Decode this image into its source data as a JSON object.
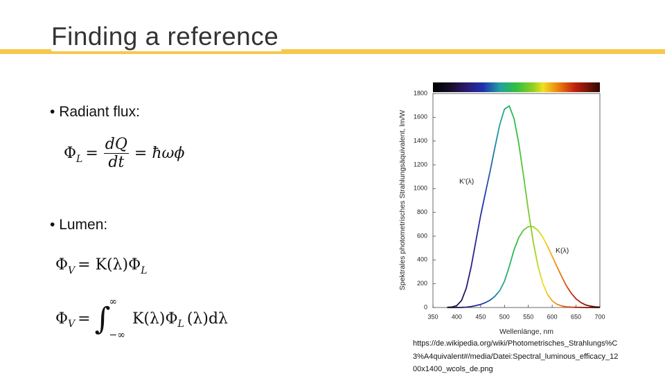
{
  "header": {
    "title": "Finding a reference"
  },
  "bullets": [
    "Radiant flux:",
    "Lumen:"
  ],
  "formulas": {
    "radiant": {
      "symbol": "Φ",
      "sub": "L",
      "eq": "=",
      "num": "dQ",
      "den": "dt",
      "rhs": "= ħωϕ"
    },
    "lumen": {
      "symbol": "Φ",
      "sub": "V",
      "rhs": "= K(λ)Φ",
      "rhs_sub": "L"
    },
    "integral": {
      "symbol": "Φ",
      "sub": "V",
      "eq": "=",
      "int": "∫",
      "upper": "∞",
      "lower": "−∞",
      "body": "K(λ)Φ",
      "body_sub": "L",
      "tail": "(λ)dλ"
    }
  },
  "chart_data": {
    "type": "line",
    "xlabel": "Wellenlänge, nm",
    "ylabel": "Spektrales photometrisches Strahlungsäquivalent, lm/W",
    "x": [
      380,
      390,
      400,
      410,
      420,
      430,
      440,
      450,
      460,
      470,
      480,
      490,
      500,
      510,
      520,
      530,
      540,
      550,
      560,
      570,
      580,
      590,
      600,
      610,
      620,
      630,
      640,
      650,
      660,
      670,
      680,
      690,
      700
    ],
    "series": [
      {
        "name": "K'(λ)",
        "values": [
          1,
          4,
          16,
          59,
          164,
          340,
          558,
          774,
          964,
          1149,
          1348,
          1537,
          1669,
          1695,
          1590,
          1379,
          1105,
          818,
          559,
          353,
          206,
          111,
          56,
          27,
          13,
          6,
          3,
          1,
          1,
          0,
          0,
          0,
          0
        ]
      },
      {
        "name": "K(λ)",
        "values": [
          0,
          0,
          0,
          1,
          3,
          8,
          16,
          26,
          41,
          62,
          95,
          142,
          221,
          344,
          485,
          589,
          652,
          680,
          680,
          650,
          594,
          517,
          431,
          344,
          260,
          181,
          120,
          73,
          42,
          22,
          12,
          6,
          3
        ]
      }
    ],
    "xlim": [
      350,
      700
    ],
    "xticks": [
      350,
      400,
      450,
      500,
      550,
      600,
      650,
      700
    ],
    "ylim": [
      0,
      1800
    ],
    "yticks": [
      0,
      200,
      400,
      600,
      800,
      1000,
      1200,
      1400,
      1600,
      1800
    ],
    "grid": false
  },
  "source": [
    "https://de.wikipedia.org/wiki/Photometrisches_Strahlungs%C",
    "3%A4quivalent#/media/Datei:Spectral_luminous_efficacy_12",
    "00x1400_wcols_de.png"
  ]
}
